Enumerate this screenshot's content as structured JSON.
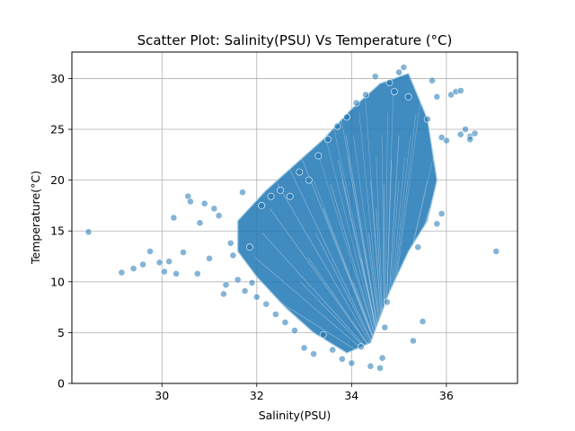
{
  "chart_data": {
    "type": "scatter",
    "title": "Scatter Plot: Salinity(PSU) Vs Temperature (°C)",
    "xlabel": "Salinity(PSU)",
    "ylabel": "Temperature(°C)",
    "xlim": [
      28.1,
      37.5
    ],
    "ylim": [
      0,
      32.6
    ],
    "xticks": [
      30,
      32,
      34,
      36
    ],
    "yticks": [
      0,
      5,
      10,
      15,
      20,
      25,
      30
    ],
    "grid": true,
    "point_color": "#1f77b4",
    "point_edge_color": "#ffffff",
    "point_alpha": 0.55,
    "series": [
      {
        "x": [
          28.45,
          29.15,
          29.4,
          29.6,
          29.75,
          29.95,
          30.05,
          30.15,
          30.25,
          30.3,
          30.45,
          30.55,
          30.6,
          30.75,
          30.8,
          30.9,
          31.0,
          31.1,
          31.2,
          31.3,
          31.35,
          31.45,
          31.5,
          31.6,
          31.7,
          31.75,
          31.85,
          31.9,
          32.0,
          32.1,
          32.2,
          32.3,
          32.4,
          32.5,
          32.6,
          32.7,
          32.8,
          32.9,
          33.0,
          33.1,
          33.2,
          33.3,
          33.4,
          33.5,
          33.6,
          33.7,
          33.8,
          33.9,
          34.0,
          34.1,
          34.2,
          34.3,
          34.4,
          34.5,
          34.6,
          34.65,
          34.7,
          34.75,
          34.8,
          34.9,
          35.0,
          35.1,
          35.2,
          35.3,
          35.4,
          35.5,
          35.6,
          35.7,
          35.8,
          35.9,
          36.0,
          36.1,
          36.2,
          36.3,
          36.4,
          36.5,
          36.6,
          37.05,
          35.8,
          36.5,
          36.3,
          35.9
        ],
        "y": [
          14.9,
          10.9,
          11.3,
          11.7,
          13.0,
          11.9,
          11.0,
          12.0,
          16.3,
          10.8,
          12.9,
          18.4,
          17.9,
          10.8,
          15.8,
          17.7,
          12.3,
          17.2,
          16.5,
          8.8,
          9.7,
          13.8,
          12.6,
          10.2,
          18.8,
          9.1,
          13.4,
          9.9,
          8.5,
          17.5,
          7.8,
          18.4,
          6.8,
          19.0,
          6.0,
          18.4,
          5.2,
          20.8,
          3.5,
          20.0,
          2.9,
          22.4,
          4.8,
          24.0,
          3.3,
          25.3,
          2.4,
          26.2,
          2.0,
          27.6,
          3.6,
          28.4,
          1.7,
          30.2,
          1.5,
          2.5,
          5.5,
          8.0,
          29.6,
          28.7,
          30.6,
          31.1,
          28.2,
          4.2,
          13.4,
          6.1,
          26.0,
          29.8,
          28.2,
          16.7,
          23.9,
          28.4,
          28.7,
          28.8,
          25.0,
          24.3,
          24.6,
          13.0,
          15.7,
          24.0,
          24.5,
          24.2
        ]
      }
    ],
    "density_regions": [
      {
        "x": [
          31.6,
          32.2,
          32.8,
          33.4,
          34.0,
          34.6,
          35.2,
          35.6,
          35.8,
          35.6,
          35.2,
          34.8,
          34.4,
          33.9,
          33.2,
          32.6,
          32.0,
          31.6
        ],
        "y": [
          16.0,
          19.0,
          21.5,
          24.0,
          27.0,
          29.5,
          30.5,
          26.0,
          20.0,
          16.0,
          13.0,
          9.0,
          4.0,
          3.0,
          5.0,
          7.5,
          10.5,
          13.0
        ]
      }
    ]
  }
}
